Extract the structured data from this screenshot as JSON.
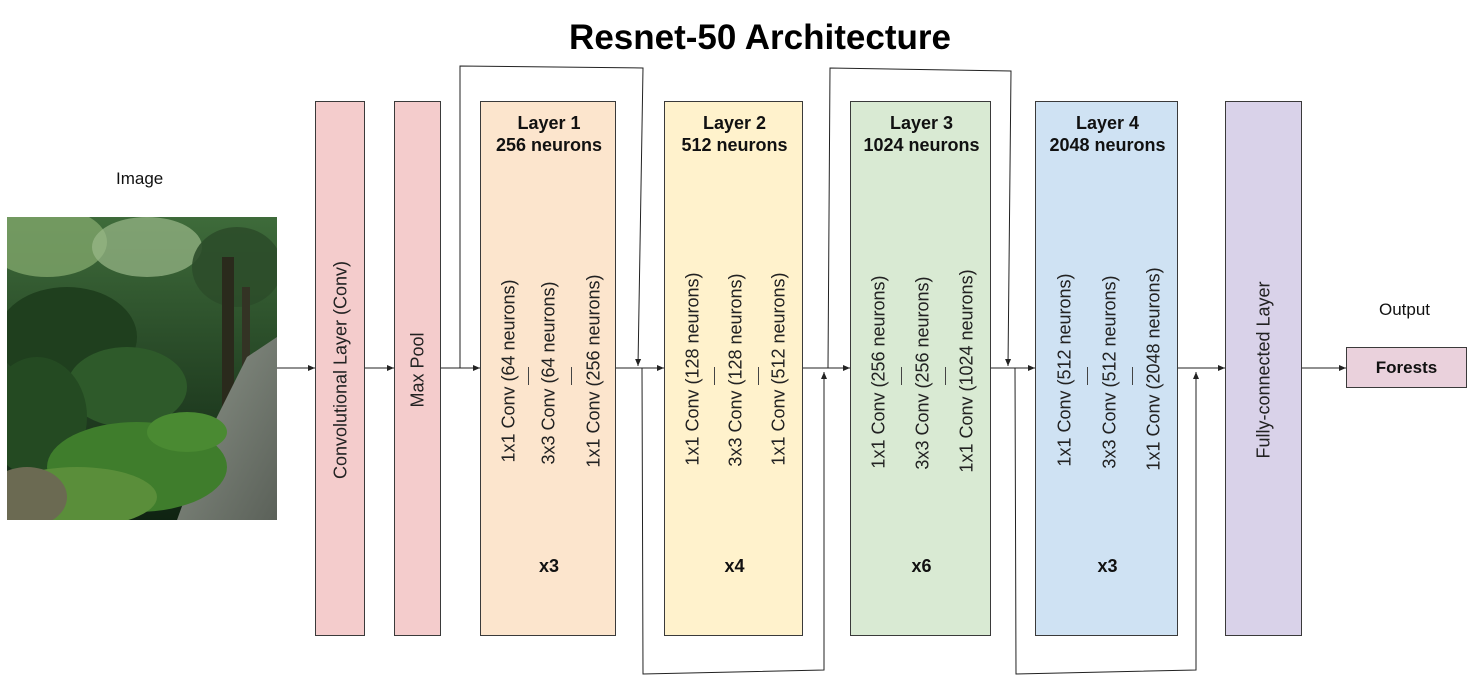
{
  "title": "Resnet-50 Architecture",
  "input": {
    "label": "Image"
  },
  "conv": {
    "label": "Convolutional Layer (Conv)"
  },
  "pool": {
    "label": "Max Pool"
  },
  "layers": [
    {
      "name": "Layer 1",
      "neurons": "256 neurons",
      "repeat": "x3",
      "color": "#fce5cd",
      "convs": [
        "1x1 Conv (64 neurons)",
        "3x3 Conv (64 neurons)",
        "1x1 Conv (256 neurons)"
      ]
    },
    {
      "name": "Layer 2",
      "neurons": "512 neurons",
      "repeat": "x4",
      "color": "#fff2cc",
      "convs": [
        "1x1 Conv (128 neurons)",
        "3x3 Conv (128 neurons)",
        "1x1 Conv (512 neurons)"
      ]
    },
    {
      "name": "Layer 3",
      "neurons": "1024 neurons",
      "repeat": "x6",
      "color": "#d9ead3",
      "convs": [
        "1x1 Conv (256 neurons)",
        "3x3 Conv (256 neurons)",
        "1x1 Conv (1024 neurons)"
      ]
    },
    {
      "name": "Layer 4",
      "neurons": "2048 neurons",
      "repeat": "x3",
      "color": "#cfe2f3",
      "convs": [
        "1x1 Conv (512 neurons)",
        "3x3 Conv (512 neurons)",
        "1x1 Conv (2048 neurons)"
      ]
    }
  ],
  "fc": {
    "label": "Fully-connected Layer"
  },
  "output": {
    "label": "Output",
    "value": "Forests"
  },
  "colors": {
    "conv": "#f4cccc",
    "pool": "#f4cccc",
    "fc": "#d9d2e9",
    "output": "#ead1dc"
  }
}
